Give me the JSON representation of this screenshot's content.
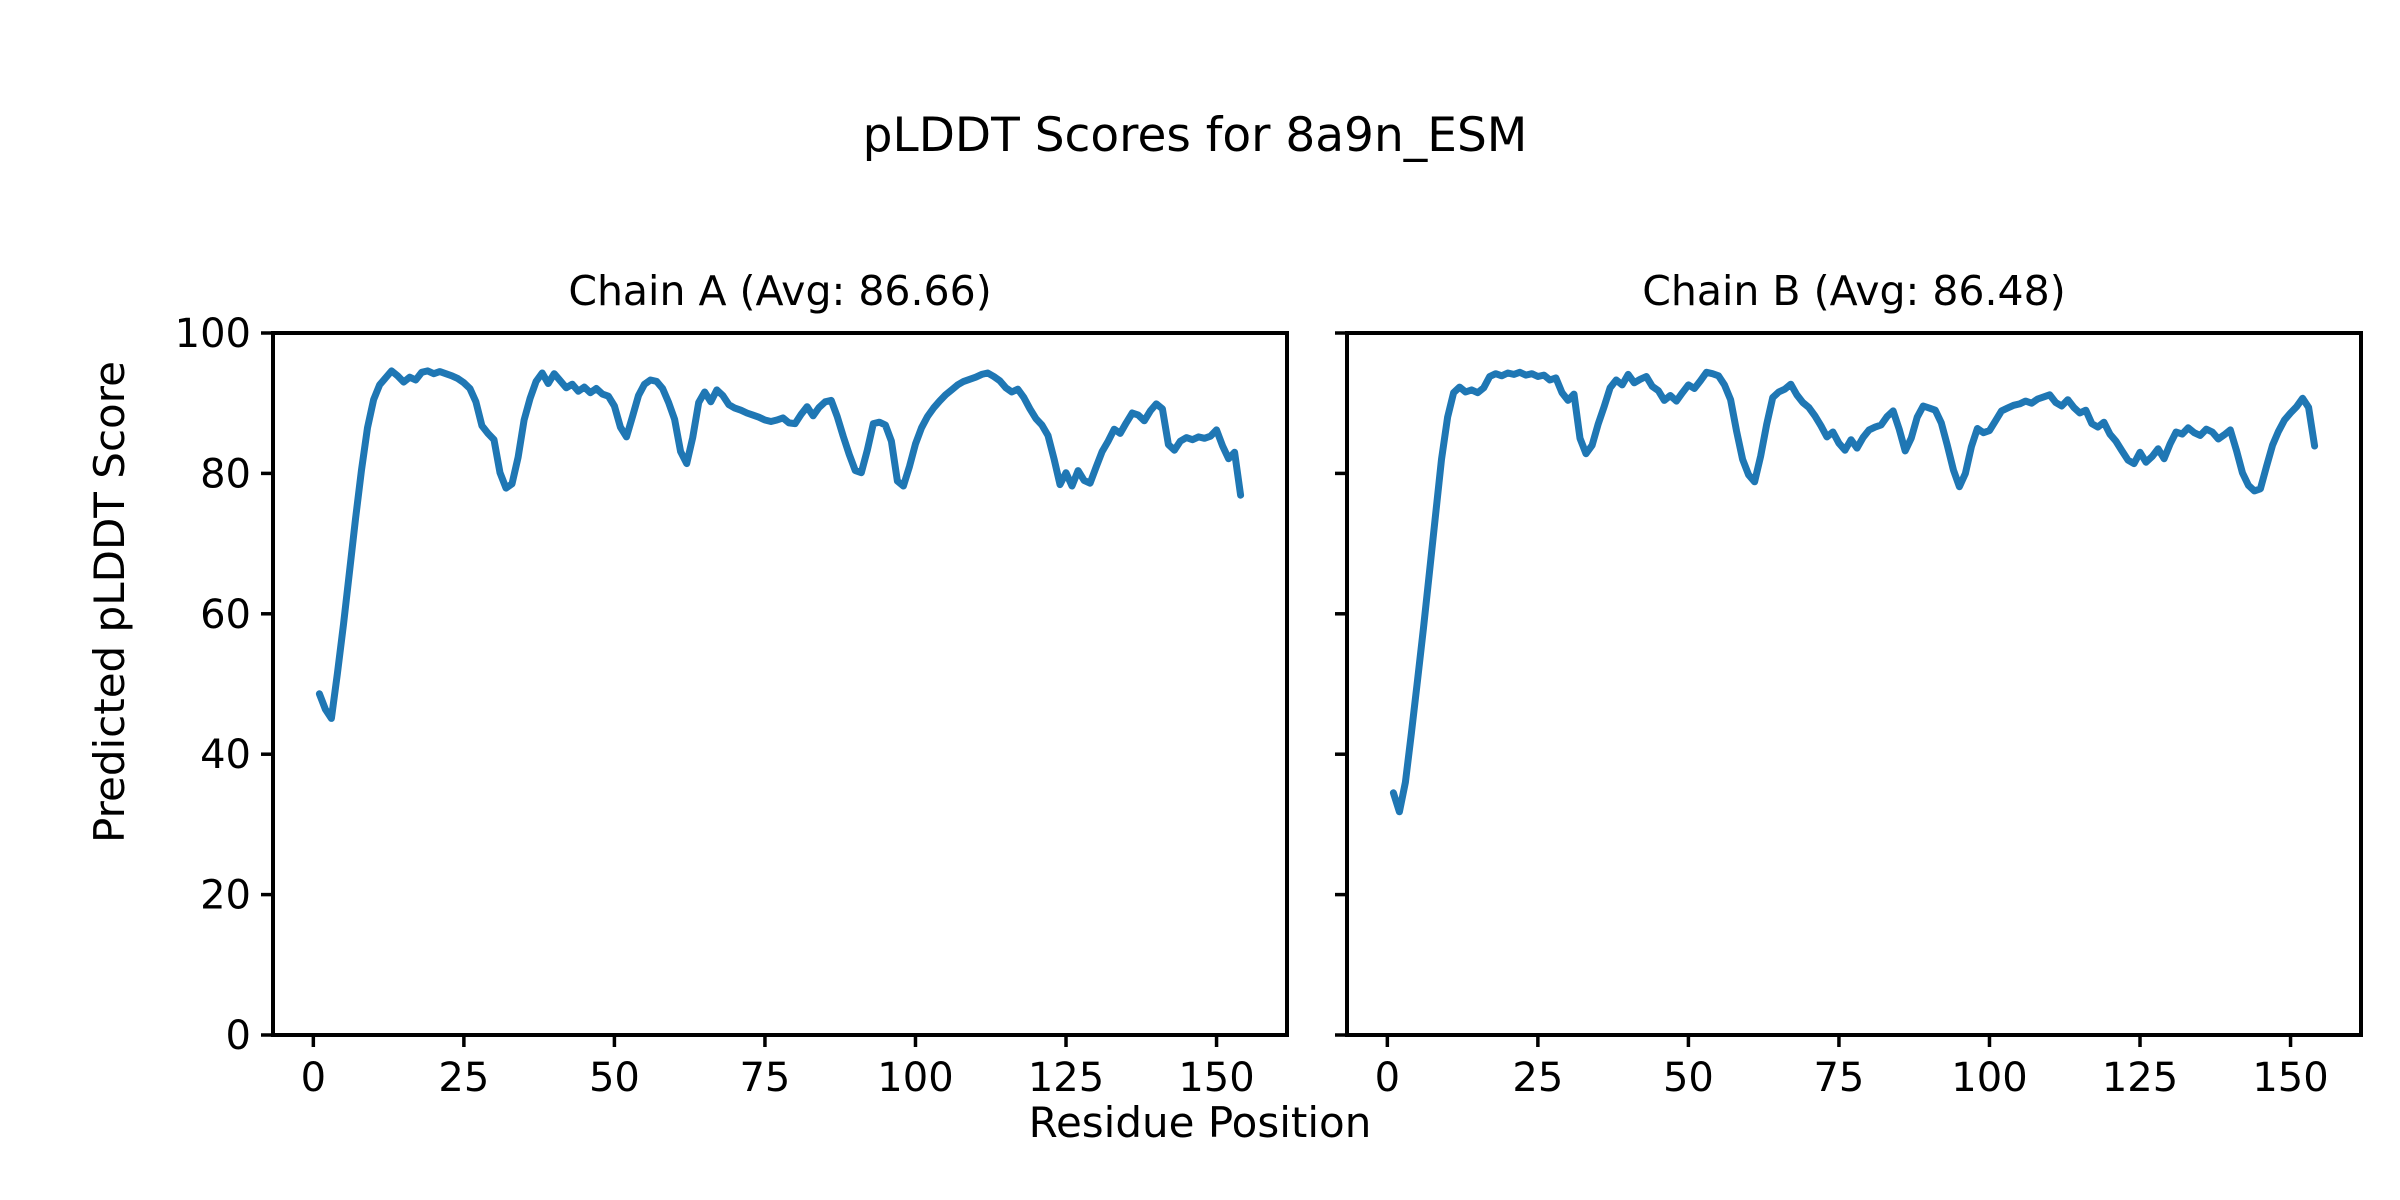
{
  "figure": {
    "title": "pLDDT Scores for 8a9n_ESM",
    "xlabel": "Residue Position",
    "ylabel": "Predicted pLDDT Score",
    "line_color": "#1f77b4",
    "axis_color": "#000000",
    "background": "#ffffff"
  },
  "chart_data": [
    {
      "type": "line",
      "title": "Chain A (Avg: 86.66)",
      "chain": "A",
      "avg": 86.66,
      "x_start_residue": 1,
      "xticks": [
        0,
        25,
        50,
        75,
        100,
        125,
        150
      ],
      "yticks": [
        0,
        20,
        40,
        60,
        80,
        100
      ],
      "xlim": [
        -6.7,
        161.7
      ],
      "ylim": [
        0,
        100
      ],
      "grid": false,
      "values": [
        48.6,
        46.4,
        45.1,
        51.5,
        58.5,
        66.0,
        73.5,
        80.5,
        86.5,
        90.5,
        92.6,
        93.6,
        94.6,
        93.9,
        93.0,
        93.7,
        93.3,
        94.4,
        94.6,
        94.2,
        94.5,
        94.2,
        93.9,
        93.5,
        92.9,
        92.1,
        90.2,
        86.8,
        85.7,
        84.8,
        80.1,
        77.9,
        78.5,
        82.3,
        87.6,
        90.7,
        93.1,
        94.3,
        92.8,
        94.2,
        93.2,
        92.2,
        92.7,
        91.7,
        92.3,
        91.5,
        92.1,
        91.3,
        91.0,
        89.6,
        86.6,
        85.2,
        88.1,
        91.1,
        92.7,
        93.3,
        93.1,
        92.1,
        90.1,
        87.7,
        83.1,
        81.4,
        85.1,
        90.1,
        91.6,
        90.2,
        91.9,
        91.1,
        89.8,
        89.3,
        89.0,
        88.6,
        88.3,
        88.0,
        87.6,
        87.4,
        87.6,
        87.9,
        87.2,
        87.1,
        88.4,
        89.5,
        88.2,
        89.4,
        90.2,
        90.4,
        88.1,
        85.3,
        82.7,
        80.4,
        80.1,
        83.3,
        87.1,
        87.3,
        86.9,
        84.6,
        78.9,
        78.2,
        81.0,
        84.2,
        86.5,
        88.1,
        89.3,
        90.3,
        91.2,
        91.9,
        92.6,
        93.1,
        93.4,
        93.7,
        94.1,
        94.3,
        93.8,
        93.2,
        92.2,
        91.6,
        92.0,
        90.8,
        89.2,
        87.8,
        86.9,
        85.4,
        82.1,
        78.4,
        80.1,
        78.2,
        80.4,
        79.0,
        78.6,
        80.9,
        83.1,
        84.6,
        86.3,
        85.7,
        87.2,
        88.6,
        88.3,
        87.5,
        88.9,
        89.9,
        89.2,
        84.1,
        83.3,
        84.6,
        85.1,
        84.8,
        85.2,
        85.0,
        85.3,
        86.2,
        83.9,
        82.1,
        83.0,
        76.9
      ]
    },
    {
      "type": "line",
      "title": "Chain B (Avg: 86.48)",
      "chain": "B",
      "avg": 86.48,
      "x_start_residue": 1,
      "xticks": [
        0,
        25,
        50,
        75,
        100,
        125,
        150
      ],
      "yticks": [
        0,
        20,
        40,
        60,
        80,
        100
      ],
      "xlim": [
        -6.7,
        161.7
      ],
      "ylim": [
        0,
        100
      ],
      "grid": false,
      "values": [
        34.5,
        31.8,
        36.0,
        43.0,
        50.5,
        58.0,
        66.0,
        74.0,
        82.0,
        88.0,
        91.5,
        92.3,
        91.6,
        91.9,
        91.5,
        92.2,
        93.8,
        94.2,
        93.9,
        94.3,
        94.1,
        94.4,
        94.0,
        94.2,
        93.8,
        94.0,
        93.3,
        93.6,
        91.5,
        90.4,
        91.3,
        85.0,
        82.8,
        84.0,
        87.0,
        89.5,
        92.2,
        93.3,
        92.6,
        94.1,
        92.9,
        93.4,
        93.8,
        92.4,
        91.8,
        90.4,
        91.1,
        90.3,
        91.5,
        92.6,
        92.1,
        93.2,
        94.4,
        94.2,
        93.9,
        92.6,
        90.5,
        86.0,
        82.0,
        79.8,
        78.8,
        82.5,
        87.0,
        90.8,
        91.6,
        92.0,
        92.7,
        91.2,
        90.1,
        89.4,
        88.2,
        86.8,
        85.2,
        85.9,
        84.3,
        83.3,
        84.8,
        83.6,
        85.1,
        86.2,
        86.6,
        86.9,
        88.1,
        88.9,
        86.3,
        83.2,
        85.0,
        88.0,
        89.6,
        89.3,
        89.0,
        87.2,
        84.0,
        80.5,
        78.1,
        80.0,
        83.8,
        86.4,
        85.8,
        86.1,
        87.5,
        88.9,
        89.3,
        89.7,
        89.9,
        90.3,
        90.0,
        90.6,
        90.9,
        91.2,
        90.1,
        89.6,
        90.5,
        89.4,
        88.6,
        89.0,
        87.1,
        86.6,
        87.3,
        85.6,
        84.6,
        83.2,
        81.9,
        81.4,
        83.0,
        81.6,
        82.4,
        83.5,
        82.1,
        84.2,
        85.9,
        85.6,
        86.5,
        85.8,
        85.4,
        86.3,
        85.9,
        84.9,
        85.5,
        86.2,
        83.3,
        80.1,
        78.3,
        77.5,
        77.8,
        81.0,
        84.0,
        86.0,
        87.6,
        88.6,
        89.5,
        90.7,
        89.4,
        83.9
      ]
    }
  ],
  "style": {
    "spine_width": 4,
    "tick_length": 12,
    "tick_width": 3.5,
    "line_width": 7,
    "tick_font_size": 40
  }
}
